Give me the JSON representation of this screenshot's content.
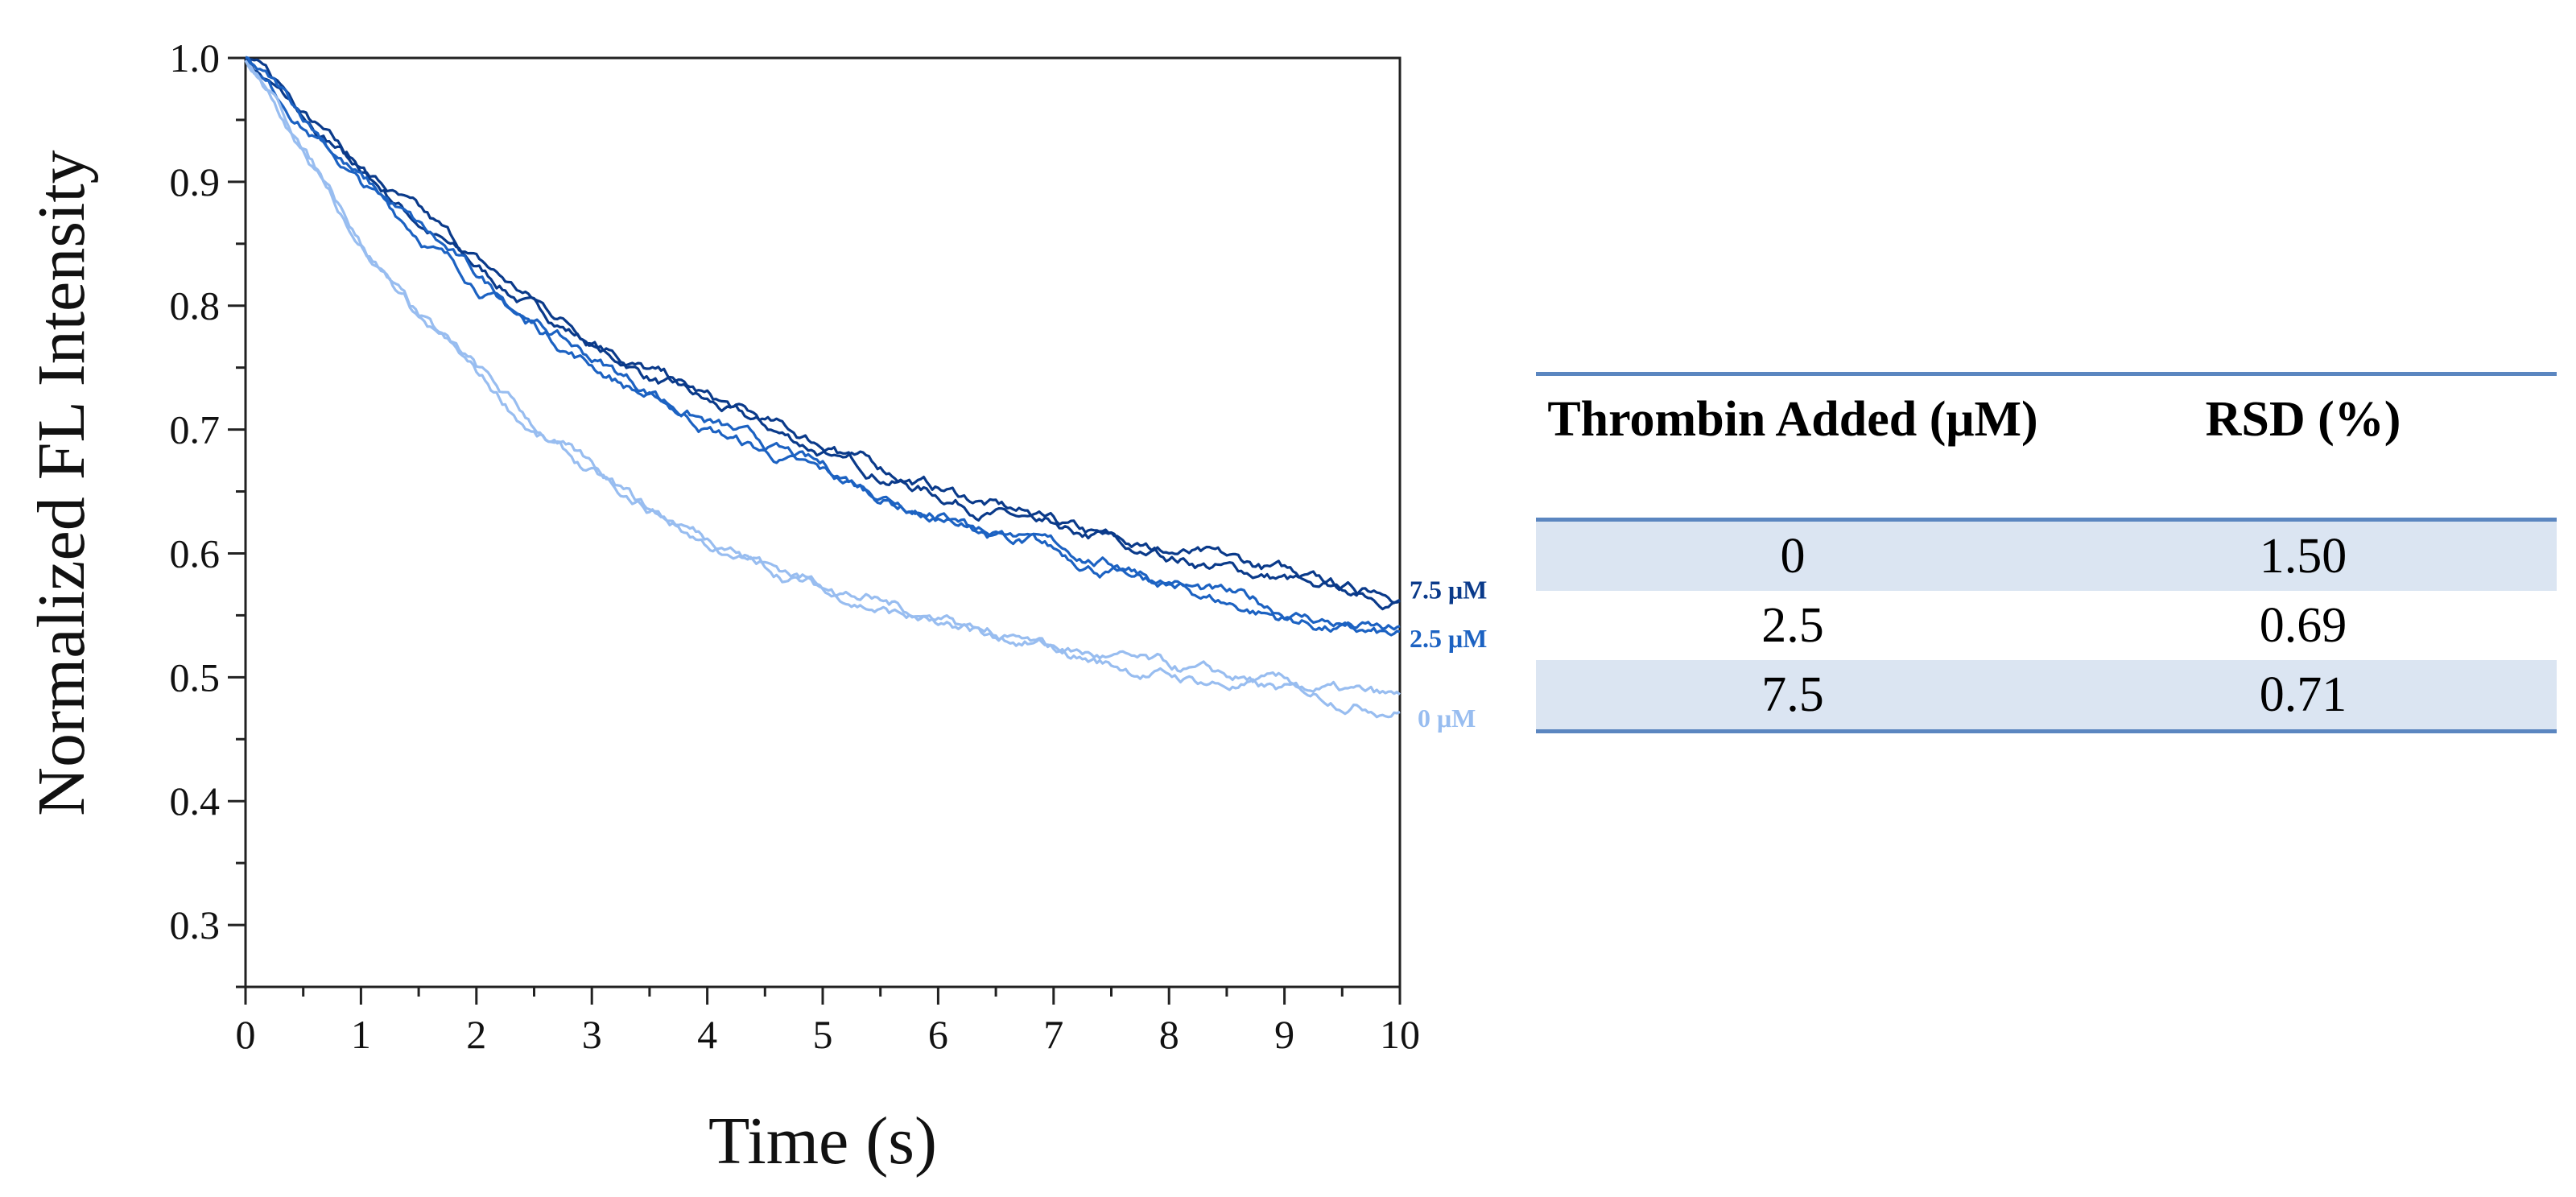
{
  "chart_data": {
    "type": "line",
    "title": "",
    "xlabel": "Time (s)",
    "ylabel": "Normalized FL Intensity",
    "xlim": [
      0,
      10
    ],
    "ylim": [
      0.25,
      1.0
    ],
    "xticks": [
      "0",
      "1",
      "2",
      "3",
      "4",
      "5",
      "6",
      "7",
      "8",
      "9",
      "10"
    ],
    "yticks": [
      "0.3",
      "0.4",
      "0.5",
      "0.6",
      "0.7",
      "0.8",
      "0.9",
      "1.0"
    ],
    "grid": false,
    "legend": "labels at line ends",
    "x": [
      0,
      0.5,
      1,
      1.5,
      2,
      2.5,
      3,
      3.5,
      4,
      4.5,
      5,
      5.5,
      6,
      6.5,
      7,
      7.5,
      8,
      8.5,
      9,
      9.5,
      10
    ],
    "series": [
      {
        "name": "7.5 μM",
        "color": "#0a3a8a",
        "replicates": 2,
        "values": [
          1.0,
          0.955,
          0.91,
          0.87,
          0.832,
          0.8,
          0.772,
          0.745,
          0.722,
          0.702,
          0.684,
          0.666,
          0.65,
          0.635,
          0.622,
          0.61,
          0.6,
          0.59,
          0.581,
          0.573,
          0.565
        ]
      },
      {
        "name": "2.5 μM",
        "color": "#1c62c2",
        "replicates": 2,
        "values": [
          1.0,
          0.95,
          0.9,
          0.86,
          0.82,
          0.785,
          0.755,
          0.728,
          0.704,
          0.683,
          0.665,
          0.647,
          0.631,
          0.616,
          0.602,
          0.588,
          0.575,
          0.562,
          0.55,
          0.54,
          0.532
        ]
      },
      {
        "name": "0 μM",
        "color": "#98bdf0",
        "replicates": 2,
        "values": [
          1.0,
          0.925,
          0.85,
          0.79,
          0.745,
          0.7,
          0.665,
          0.635,
          0.61,
          0.59,
          0.573,
          0.558,
          0.545,
          0.533,
          0.522,
          0.512,
          0.503,
          0.496,
          0.49,
          0.484,
          0.478
        ]
      }
    ]
  },
  "table": {
    "headers": [
      "Thrombin Added (μM)",
      "RSD (%)"
    ],
    "rows": [
      [
        "0",
        "1.50"
      ],
      [
        "2.5",
        "0.69"
      ],
      [
        "7.5",
        "0.71"
      ]
    ]
  }
}
